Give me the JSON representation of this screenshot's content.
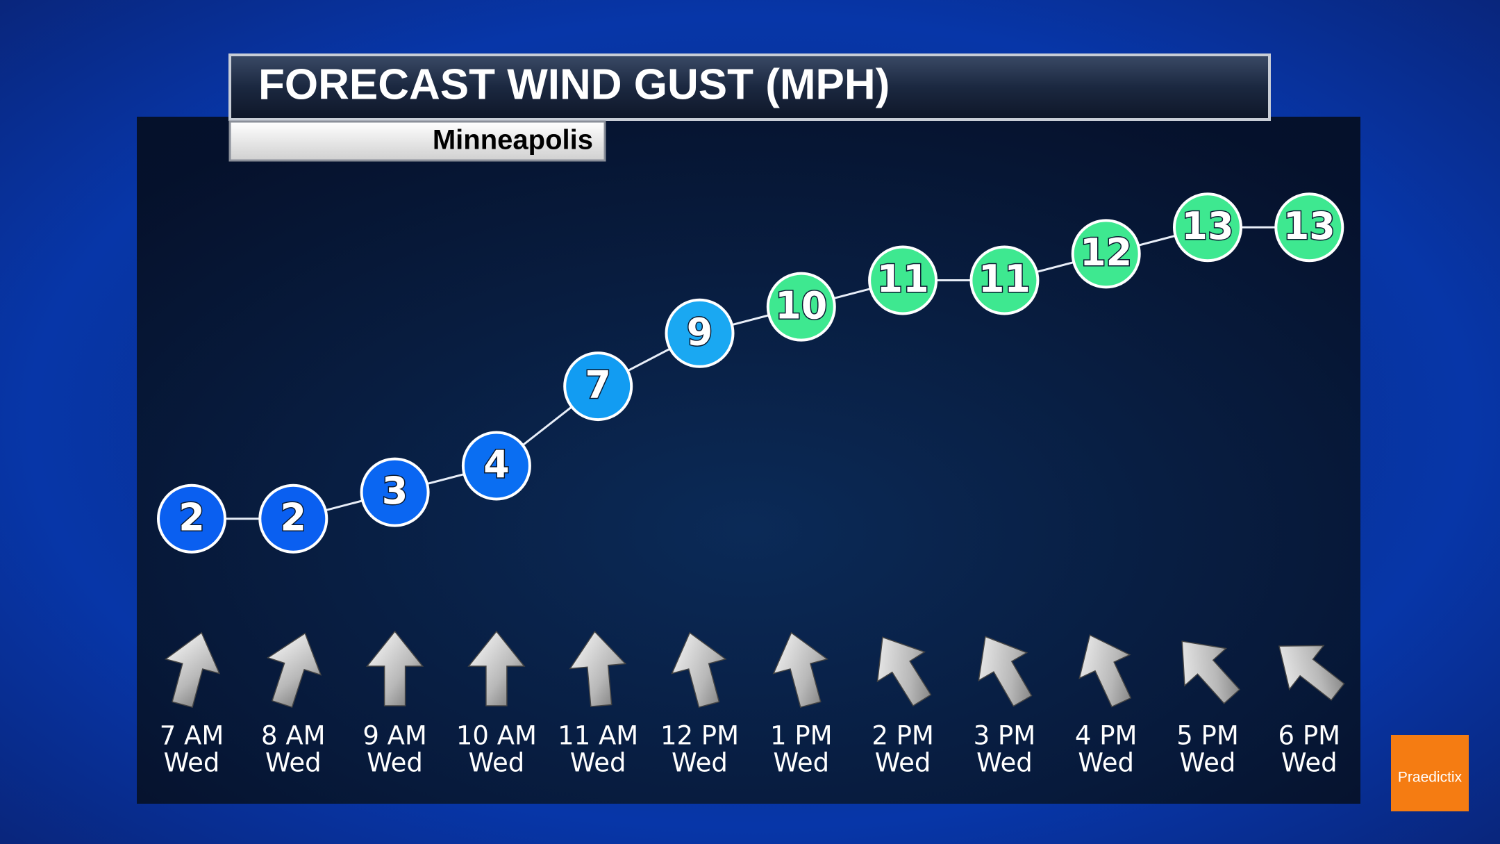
{
  "chart_data": {
    "type": "line",
    "title": "FORECAST WIND GUST (MPH)",
    "subtitle": "Minneapolis",
    "categories": [
      [
        "7 AM",
        "Wed"
      ],
      [
        "8 AM",
        "Wed"
      ],
      [
        "9 AM",
        "Wed"
      ],
      [
        "10 AM",
        "Wed"
      ],
      [
        "11 AM",
        "Wed"
      ],
      [
        "12 PM",
        "Wed"
      ],
      [
        "1 PM",
        "Wed"
      ],
      [
        "2 PM",
        "Wed"
      ],
      [
        "3 PM",
        "Wed"
      ],
      [
        "4 PM",
        "Wed"
      ],
      [
        "5 PM",
        "Wed"
      ],
      [
        "6 PM",
        "Wed"
      ]
    ],
    "values": [
      2,
      2,
      3,
      4,
      7,
      9,
      10,
      11,
      11,
      12,
      13,
      13
    ],
    "colors": [
      "#0a5ff0",
      "#0a5ff0",
      "#0a66f2",
      "#0a6ef2",
      "#129cf2",
      "#1aa8f2",
      "#3ee890",
      "#3ee890",
      "#3ee890",
      "#3ee890",
      "#3ee890",
      "#3ee890"
    ],
    "arrow_angles": [
      15,
      18,
      0,
      0,
      -5,
      -15,
      -15,
      -32,
      -30,
      -25,
      -42,
      -52
    ],
    "ylim": [
      0,
      15
    ],
    "grid": false,
    "logo": "Praedictix"
  }
}
